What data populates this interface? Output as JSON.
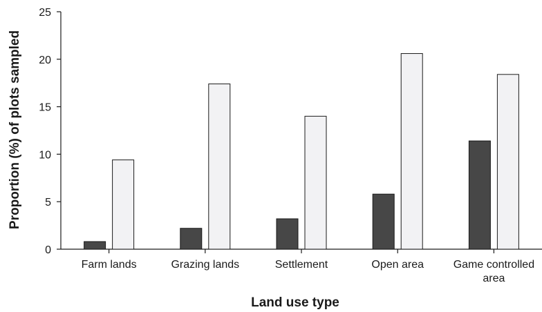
{
  "chart_data": {
    "type": "bar",
    "title": "",
    "xlabel": "Land use type",
    "ylabel": "Proportion (%) of plots sampled",
    "ylim": [
      0,
      25
    ],
    "yticks": [
      0,
      5,
      10,
      15,
      20,
      25
    ],
    "grid": false,
    "categories": [
      [
        "Farm lands"
      ],
      [
        "Grazing lands"
      ],
      [
        "Settlement"
      ],
      [
        "Open area"
      ],
      [
        "Game controlled",
        "area"
      ]
    ],
    "series": [
      {
        "values": [
          0.8,
          2.2,
          3.2,
          5.8,
          11.4
        ],
        "color": "#474747"
      },
      {
        "values": [
          9.4,
          17.4,
          14.0,
          20.6,
          18.4
        ],
        "color": "#f2f2f4"
      }
    ]
  }
}
